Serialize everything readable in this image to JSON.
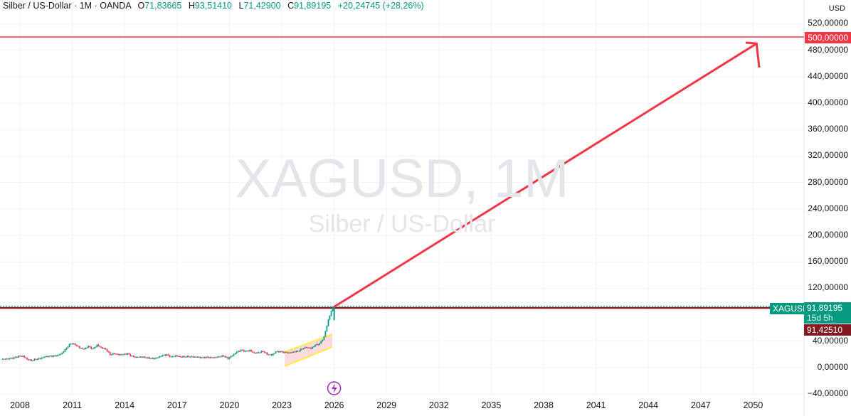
{
  "header": {
    "symbol_desc": "Silber / US-Dollar",
    "interval": "1M",
    "exchange": "OANDA",
    "sep": "·",
    "open_label": "O",
    "open": "71,83665",
    "high_label": "H",
    "high": "93,51410",
    "low_label": "L",
    "low": "71,42900",
    "close_label": "C",
    "close": "91,89195",
    "change": "+20,24745 (+28,26%)"
  },
  "watermark": {
    "title": "XAGUSD, 1M",
    "subtitle": "Silber / US-Dollar"
  },
  "price_axis": {
    "currency": "USD",
    "labels": [
      "520,00000",
      "480,00000",
      "440,00000",
      "400,00000",
      "360,00000",
      "320,00000",
      "280,00000",
      "240,00000",
      "200,00000",
      "160,00000",
      "120,00000",
      "40,00000",
      "0,00000",
      "−40,00000"
    ],
    "values": [
      520,
      480,
      440,
      400,
      360,
      320,
      280,
      240,
      200,
      160,
      120,
      40,
      0,
      -40
    ]
  },
  "tags": {
    "target": "500,00000",
    "symbol": "XAGUSD",
    "last": "91,89195",
    "countdown": "15d 5h",
    "line": "91,42510"
  },
  "time_axis": {
    "labels": [
      "2008",
      "2011",
      "2014",
      "2017",
      "2020",
      "2023",
      "2026",
      "2029",
      "2032",
      "2035",
      "2038",
      "2041",
      "2044",
      "2047",
      "2050"
    ]
  },
  "colors": {
    "up": "#089981",
    "down": "#f23645",
    "target_line": "#f23645",
    "hline": "#801922",
    "channel": "#ffeb3b",
    "arrow": "#f23645",
    "event": "#9c27b0"
  },
  "chart_data": {
    "type": "candlestick",
    "period": "quarterly approx",
    "start_year": 2007,
    "closes": [
      13,
      13,
      13.5,
      14.8,
      17,
      17.5,
      12.5,
      11,
      13,
      14,
      16.5,
      17,
      17.5,
      18.5,
      22,
      30,
      37,
      35,
      30,
      28,
      32,
      28,
      34,
      30,
      28,
      20,
      21.5,
      19.5,
      19.8,
      21,
      17,
      15.5,
      16.5,
      15.5,
      14.5,
      13.8,
      15.5,
      18.5,
      19.2,
      16,
      18,
      16.5,
      16.7,
      17,
      16.4,
      16.1,
      14.7,
      15.5,
      15,
      15.3,
      17,
      18,
      14,
      18.5,
      23.5,
      26.4,
      24.5,
      26,
      22,
      23,
      25,
      20.5,
      19,
      24,
      24,
      22.8,
      22.3,
      24,
      25,
      29,
      31,
      29,
      34,
      36,
      46,
      72,
      91.89
    ],
    "target_price": 500,
    "horizontal_line": 91.4251,
    "arrow": {
      "from": [
        2026.0,
        91.9
      ],
      "to": [
        2050.2,
        490
      ]
    }
  }
}
